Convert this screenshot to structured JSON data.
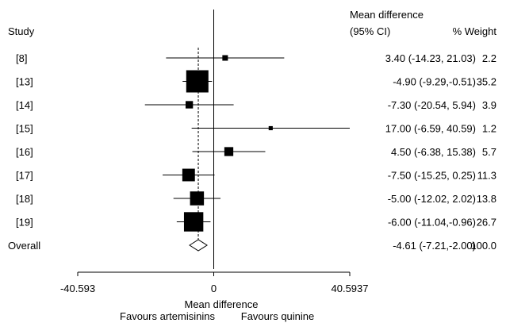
{
  "chart_data": {
    "type": "forest",
    "header": {
      "study": "Study",
      "effect_line1": "Mean difference",
      "effect_line2": "(95% CI)",
      "weight": "% Weight"
    },
    "studies": [
      {
        "label": "[8]",
        "mean": 3.4,
        "lower": -14.23,
        "upper": 21.03,
        "ci_text": "3.40 (-14.23, 21.03)",
        "weight": 2.2,
        "weight_text": "2.2"
      },
      {
        "label": "[13]",
        "mean": -4.9,
        "lower": -9.29,
        "upper": -0.51,
        "ci_text": "-4.90 (-9.29,-0.51)",
        "weight": 35.2,
        "weight_text": "35.2"
      },
      {
        "label": "[14]",
        "mean": -7.3,
        "lower": -20.54,
        "upper": 5.94,
        "ci_text": "-7.30 (-20.54, 5.94)",
        "weight": 3.9,
        "weight_text": "3.9"
      },
      {
        "label": "[15]",
        "mean": 17.0,
        "lower": -6.59,
        "upper": 40.59,
        "ci_text": "17.00 (-6.59, 40.59)",
        "weight": 1.2,
        "weight_text": "1.2"
      },
      {
        "label": "[16]",
        "mean": 4.5,
        "lower": -6.38,
        "upper": 15.38,
        "ci_text": "4.50 (-6.38, 15.38)",
        "weight": 5.7,
        "weight_text": "5.7"
      },
      {
        "label": "[17]",
        "mean": -7.5,
        "lower": -15.25,
        "upper": 0.25,
        "ci_text": "-7.50 (-15.25, 0.25)",
        "weight": 11.3,
        "weight_text": "11.3"
      },
      {
        "label": "[18]",
        "mean": -5.0,
        "lower": -12.02,
        "upper": 2.02,
        "ci_text": "-5.00 (-12.02, 2.02)",
        "weight": 13.8,
        "weight_text": "13.8"
      },
      {
        "label": "[19]",
        "mean": -6.0,
        "lower": -11.04,
        "upper": -0.96,
        "ci_text": "-6.00 (-11.04,-0.96)",
        "weight": 26.7,
        "weight_text": "26.7"
      }
    ],
    "overall": {
      "label": "Overall",
      "mean": -4.61,
      "lower": -7.21,
      "upper": -2.0,
      "ci_text": "-4.61 (-7.21,-2.00)",
      "weight": 100.0,
      "weight_text": "100.0"
    },
    "x_axis": {
      "min": -40.593,
      "max": 40.5937,
      "ticks": [
        {
          "value": -40.593,
          "label": "-40.593"
        },
        {
          "value": 0,
          "label": "0"
        },
        {
          "value": 40.5937,
          "label": "40.5937"
        }
      ],
      "xlabel": "Mean difference",
      "left_note": "Favours artemisinins",
      "right_note": "Favours quinine"
    },
    "null_line": 0,
    "grid": false,
    "legend": "none"
  }
}
